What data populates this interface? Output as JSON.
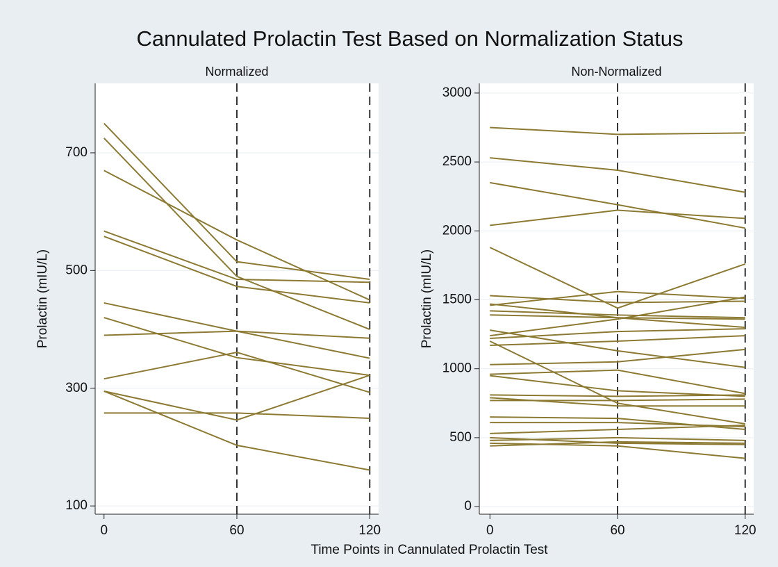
{
  "title": "Cannulated Prolactin Test Based on Normalization Status",
  "xlabel": "Time Points in Cannulated Prolactin Test",
  "chart_data": [
    {
      "type": "line",
      "title": "Normalized",
      "ylabel": "Prolactin (mIU/L)",
      "color": "#8c7a33",
      "x": [
        0,
        60,
        120
      ],
      "xlim": [
        -4,
        124
      ],
      "xticks": [
        0,
        60,
        120
      ],
      "xlines": [
        60,
        120
      ],
      "ylim": [
        86,
        818
      ],
      "yticks": [
        100,
        300,
        500,
        700
      ],
      "grid": true,
      "series": [
        {
          "values": [
            750,
            515,
            485
          ]
        },
        {
          "values": [
            725,
            490,
            400
          ]
        },
        {
          "values": [
            670,
            552,
            450
          ]
        },
        {
          "values": [
            567,
            485,
            480
          ]
        },
        {
          "values": [
            558,
            473,
            445
          ]
        },
        {
          "values": [
            445,
            397,
            351
          ]
        },
        {
          "values": [
            420,
            352,
            322
          ]
        },
        {
          "values": [
            390,
            397,
            385
          ]
        },
        {
          "values": [
            316,
            361,
            293
          ]
        },
        {
          "values": [
            295,
            246,
            322
          ]
        },
        {
          "values": [
            295,
            203,
            161
          ]
        },
        {
          "values": [
            258,
            258,
            249
          ]
        }
      ]
    },
    {
      "type": "line",
      "title": "Non-Normalized",
      "ylabel": "Prolactin (mIU/L)",
      "color": "#8c7a33",
      "x": [
        0,
        60,
        120
      ],
      "xlim": [
        -5,
        124
      ],
      "xticks": [
        0,
        60,
        120
      ],
      "xlines": [
        60,
        120
      ],
      "ylim": [
        -55,
        3070
      ],
      "yticks": [
        0,
        500,
        1000,
        1500,
        2000,
        2500,
        3000
      ],
      "grid": true,
      "series": [
        {
          "values": [
            2750,
            2700,
            2710
          ]
        },
        {
          "values": [
            2530,
            2440,
            2280
          ]
        },
        {
          "values": [
            2350,
            2190,
            2020
          ]
        },
        {
          "values": [
            2040,
            2150,
            2090
          ]
        },
        {
          "values": [
            1880,
            1440,
            1760
          ]
        },
        {
          "values": [
            1530,
            1480,
            1490
          ]
        },
        {
          "values": [
            1470,
            1370,
            1300
          ]
        },
        {
          "values": [
            1460,
            1560,
            1510
          ]
        },
        {
          "values": [
            1420,
            1390,
            1370
          ]
        },
        {
          "values": [
            1390,
            1370,
            1360
          ]
        },
        {
          "values": [
            1280,
            1130,
            1010
          ]
        },
        {
          "values": [
            1240,
            1360,
            1520
          ]
        },
        {
          "values": [
            1220,
            1270,
            1290
          ]
        },
        {
          "values": [
            1200,
            750,
            600
          ]
        },
        {
          "values": [
            1170,
            1200,
            1240
          ]
        },
        {
          "values": [
            1030,
            1050,
            1140
          ]
        },
        {
          "values": [
            960,
            990,
            820
          ]
        },
        {
          "values": [
            950,
            840,
            800
          ]
        },
        {
          "values": [
            810,
            800,
            810
          ]
        },
        {
          "values": [
            790,
            730,
            730
          ]
        },
        {
          "values": [
            770,
            770,
            780
          ]
        },
        {
          "values": [
            650,
            640,
            560
          ]
        },
        {
          "values": [
            610,
            610,
            580
          ]
        },
        {
          "values": [
            530,
            560,
            590
          ]
        },
        {
          "values": [
            500,
            460,
            450
          ]
        },
        {
          "values": [
            480,
            500,
            480
          ]
        },
        {
          "values": [
            460,
            440,
            350
          ]
        },
        {
          "values": [
            440,
            470,
            460
          ]
        }
      ]
    }
  ]
}
